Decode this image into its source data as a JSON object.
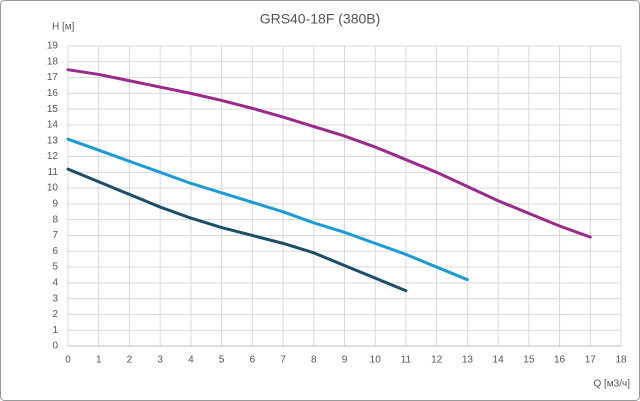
{
  "chart_data": {
    "type": "line",
    "title": "GRS40-18F (380В)",
    "y_label": "H [м]",
    "x_label": "Q [м3/ч]",
    "xlim": [
      0,
      18
    ],
    "xticks": [
      0,
      1,
      2,
      3,
      4,
      5,
      6,
      7,
      8,
      9,
      10,
      11,
      12,
      13,
      14,
      15,
      16,
      17,
      18
    ],
    "ylim": [
      0,
      19
    ],
    "yticks": [
      0,
      1,
      2,
      3,
      4,
      5,
      6,
      7,
      8,
      9,
      10,
      11,
      12,
      13,
      14,
      15,
      16,
      17,
      18,
      19
    ],
    "grid": true,
    "series": [
      {
        "color": "#9c2a8c",
        "x": [
          0,
          1,
          2,
          3,
          4,
          5,
          6,
          7,
          8,
          9,
          10,
          11,
          12,
          13,
          14,
          15,
          16,
          17
        ],
        "values": [
          17.5,
          17.2,
          16.8,
          16.4,
          16.0,
          15.55,
          15.05,
          14.5,
          13.9,
          13.3,
          12.6,
          11.8,
          11.0,
          10.1,
          9.2,
          8.4,
          7.6,
          6.9
        ]
      },
      {
        "color": "#1c9bd6",
        "x": [
          0,
          1,
          2,
          3,
          4,
          5,
          6,
          7,
          8,
          9,
          10,
          11,
          12,
          13
        ],
        "values": [
          13.1,
          12.4,
          11.7,
          11.0,
          10.3,
          9.7,
          9.1,
          8.5,
          7.8,
          7.2,
          6.5,
          5.8,
          5.0,
          4.2
        ]
      },
      {
        "color": "#1b4e6a",
        "x": [
          0,
          1,
          2,
          3,
          4,
          5,
          6,
          7,
          8,
          9,
          10,
          11
        ],
        "values": [
          11.2,
          10.4,
          9.6,
          8.8,
          8.1,
          7.5,
          7.0,
          6.5,
          5.9,
          5.1,
          4.3,
          3.5
        ]
      }
    ]
  }
}
